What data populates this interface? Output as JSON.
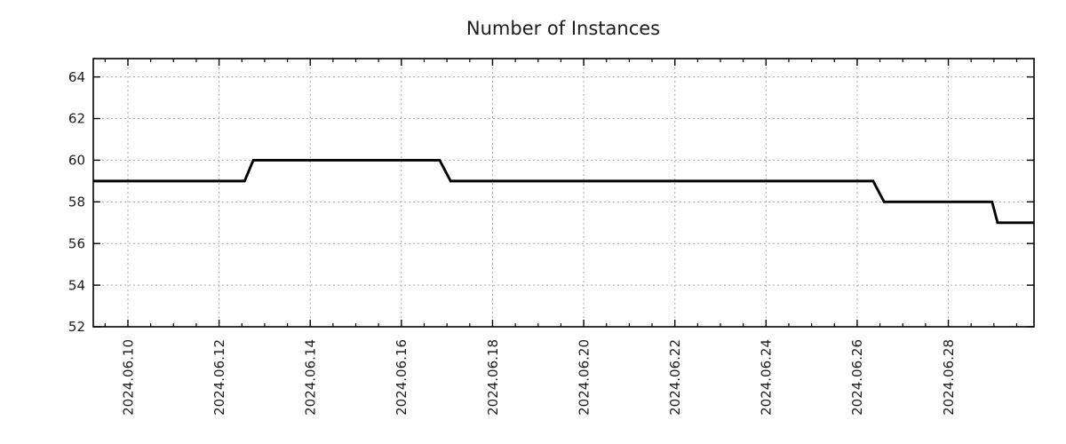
{
  "chart_data": {
    "type": "line",
    "title": "Number of Instances",
    "xlabel": "",
    "ylabel": "",
    "xlim": [
      9.24,
      29.88
    ],
    "ylim": [
      52,
      64.88
    ],
    "x_tick_values": [
      10,
      12,
      14,
      16,
      18,
      20,
      22,
      24,
      26,
      28
    ],
    "x_tick_labels": [
      "2024.06.10",
      "2024.06.12",
      "2024.06.14",
      "2024.06.16",
      "2024.06.18",
      "2024.06.20",
      "2024.06.22",
      "2024.06.24",
      "2024.06.26",
      "2024.06.28"
    ],
    "x_minor_tick_step": 0.5,
    "y_tick_values": [
      52,
      54,
      56,
      58,
      60,
      62,
      64
    ],
    "y_tick_labels": [
      "52",
      "54",
      "56",
      "58",
      "60",
      "62",
      "64"
    ],
    "grid": "dashed",
    "legend": "none",
    "series": [
      {
        "name": "instances",
        "color": "#000000",
        "step_style": "steep-ramp",
        "points": [
          [
            9.24,
            59
          ],
          [
            12.56,
            59
          ],
          [
            12.75,
            60
          ],
          [
            16.84,
            60
          ],
          [
            17.08,
            59
          ],
          [
            26.35,
            59
          ],
          [
            26.59,
            58
          ],
          [
            28.96,
            58
          ],
          [
            29.08,
            57
          ],
          [
            29.88,
            57
          ]
        ]
      }
    ],
    "colors": {
      "line": "#000000",
      "grid": "#a9a9a9",
      "axis": "#000000",
      "text": "#1c1c1c",
      "background": "#ffffff"
    }
  }
}
